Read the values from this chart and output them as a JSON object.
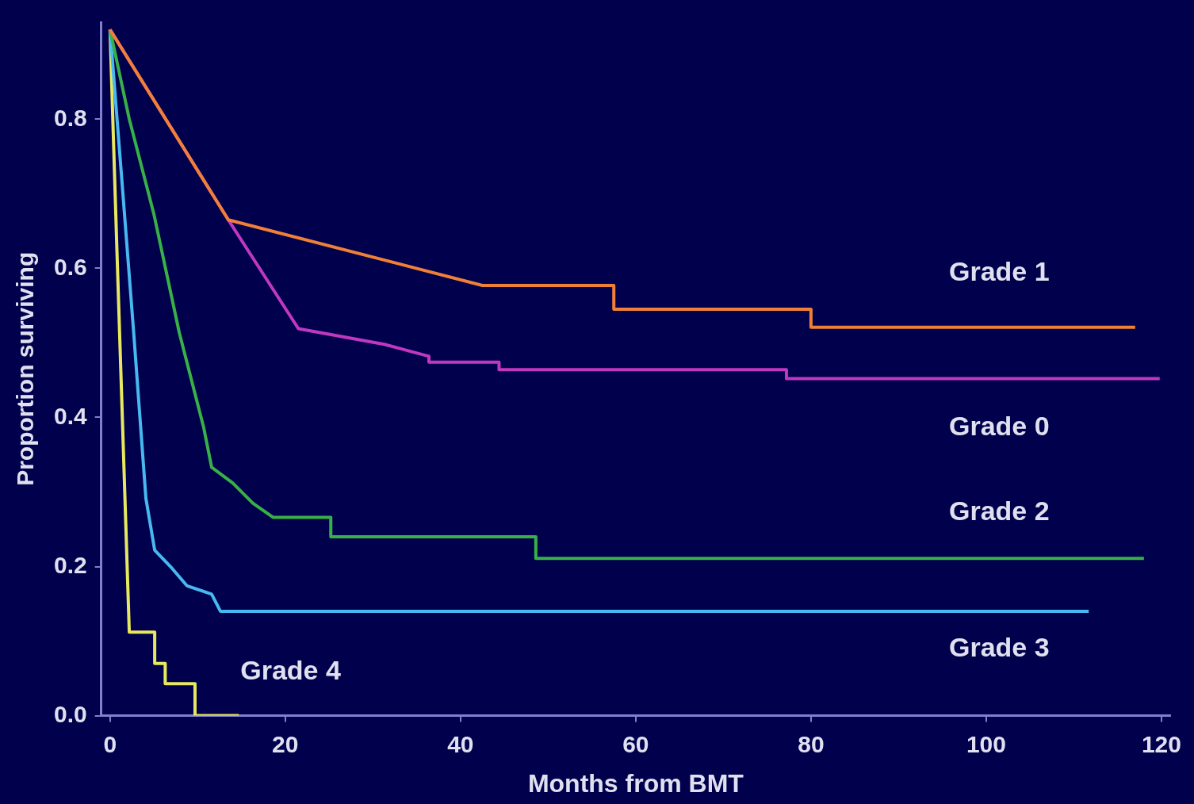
{
  "chart_data": {
    "type": "line",
    "xlabel": "Months from BMT",
    "ylabel": "Proportion surviving",
    "xlim": [
      -1,
      121
    ],
    "ylim": [
      0,
      0.93
    ],
    "xticks": [
      0,
      20,
      40,
      60,
      80,
      100,
      120
    ],
    "yticks": [
      {
        "value": 0,
        "label": "0.0"
      },
      {
        "value": 0.2,
        "label": "0.2"
      },
      {
        "value": 0.4,
        "label": "0.4"
      },
      {
        "value": 0.6,
        "label": "0.6"
      },
      {
        "value": 0.8,
        "label": "0.8"
      }
    ],
    "series": [
      {
        "name": "Grade 1",
        "color": "#f08038",
        "x": [
          0,
          13.5,
          42.5,
          57.5,
          57.5,
          80,
          80,
          117
        ],
        "values": [
          0.92,
          0.665,
          0.577,
          0.577,
          0.545,
          0.545,
          0.521,
          0.521
        ]
      },
      {
        "name": "Grade 0",
        "color": "#c038c0",
        "x": [
          0,
          13.5,
          21.5,
          31.3,
          36.4,
          36.4,
          44.4,
          44.4,
          77.2,
          77.2,
          119.8
        ],
        "values": [
          0.92,
          0.665,
          0.519,
          0.498,
          0.482,
          0.474,
          0.474,
          0.464,
          0.464,
          0.452,
          0.452
        ]
      },
      {
        "name": "Grade 2",
        "color": "#38b048",
        "x": [
          0,
          2.2,
          5,
          7.9,
          10.7,
          11.6,
          14,
          16.3,
          18.6,
          25.2,
          25.2,
          48.6,
          48.6,
          118
        ],
        "values": [
          0.92,
          0.8,
          0.673,
          0.514,
          0.386,
          0.333,
          0.312,
          0.285,
          0.266,
          0.266,
          0.24,
          0.24,
          0.211,
          0.211
        ]
      },
      {
        "name": "Grade 3",
        "color": "#48b8f0",
        "x": [
          0,
          1.3,
          2.7,
          4.1,
          5.1,
          6.9,
          8.8,
          11.6,
          12.6,
          111.7
        ],
        "values": [
          0.92,
          0.726,
          0.514,
          0.291,
          0.222,
          0.2,
          0.174,
          0.163,
          0.14,
          0.14
        ]
      },
      {
        "name": "Grade 4",
        "color": "#e8e860",
        "x": [
          0,
          0.8,
          2.2,
          5.1,
          5.1,
          6.3,
          6.3,
          9.7,
          9.7,
          14.7
        ],
        "values": [
          0.92,
          0.62,
          0.112,
          0.112,
          0.07,
          0.07,
          0.043,
          0.043,
          0,
          0
        ]
      }
    ]
  }
}
